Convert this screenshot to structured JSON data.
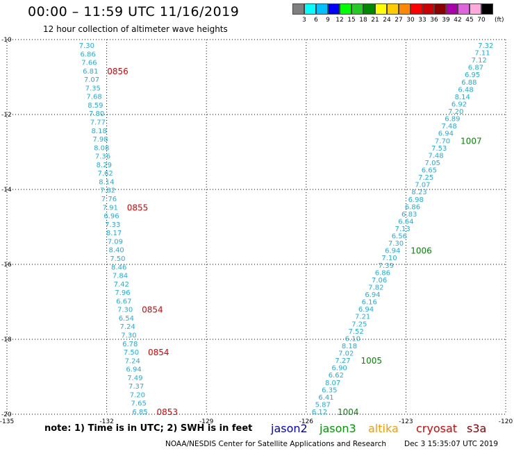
{
  "header": {
    "title": "00:00 – 11:59 UTC 11/16/2019",
    "subtitle": "12 hour collection of altimeter wave heights"
  },
  "colorbar": {
    "unit_label": "(ft)",
    "labels": [
      "3",
      "6",
      "9",
      "12",
      "15",
      "18",
      "21",
      "24",
      "27",
      "30",
      "33",
      "36",
      "39",
      "42",
      "45",
      "70"
    ],
    "colors": [
      "#7f7f7f",
      "#00ffff",
      "#00c0ff",
      "#0000ff",
      "#00ff00",
      "#22cc22",
      "#008800",
      "#ffff00",
      "#ffcc00",
      "#ff8800",
      "#ff0000",
      "#cc0000",
      "#880000",
      "#aa00aa",
      "#dd66dd",
      "#ffaadd",
      "#000000"
    ]
  },
  "map": {
    "lon_range": [
      -135,
      -120
    ],
    "lat_range": [
      -20,
      -10
    ],
    "x_ticks": [
      "-135",
      "-132",
      "-129",
      "-126",
      "-123",
      "-120"
    ],
    "y_ticks": [
      "-10",
      "-12",
      "-14",
      "-16",
      "-18",
      "-20"
    ],
    "grid_color": "#000000",
    "value_color": "#1ab0e0",
    "track_west": {
      "lon_start": -132.6,
      "lon_end": -131.0,
      "values": [
        "7.30",
        "6.86",
        "7.66",
        "6.81",
        "7.07",
        "7.35",
        "7.68",
        "8.59",
        "7.80",
        "7.77",
        "8.18",
        "7.98",
        "8.08",
        "7.36",
        "8.29",
        "7.62",
        "8.14",
        "7.82",
        "7.76",
        "7.91",
        "6.96",
        "7.33",
        "8.17",
        "7.09",
        "8.40",
        "7.50",
        "8.46",
        "7.84",
        "7.42",
        "7.96",
        "6.67",
        "7.30",
        "6.54",
        "7.24",
        "7.30",
        "6.78",
        "7.50",
        "7.24",
        "6.94",
        "7.49",
        "7.37",
        "7.20",
        "7.65",
        "6.85"
      ],
      "times": [
        {
          "label": "0856",
          "index": 3
        },
        {
          "label": "0855",
          "index": 19
        },
        {
          "label": "0854",
          "index": 31
        },
        {
          "label": "0854",
          "index": 36
        },
        {
          "label": "0853",
          "index": 43
        }
      ],
      "time_color": "#dd0000"
    },
    "track_east": {
      "lon_start": -120.6,
      "lon_end": -125.6,
      "values": [
        "7.32",
        "7.11",
        "7.12",
        "6.87",
        "6.95",
        "6.88",
        "6.48",
        "8.14",
        "6.92",
        "7.20",
        "6.89",
        "7.48",
        "6.94",
        "7.70",
        "7.53",
        "7.48",
        "7.05",
        "6.65",
        "7.25",
        "7.07",
        "8.23",
        "6.98",
        "6.86",
        "6.83",
        "6.64",
        "7.13",
        "6.56",
        "7.30",
        "6.94",
        "7.10",
        "7.39",
        "6.86",
        "7.06",
        "7.82",
        "6.94",
        "6.16",
        "6.94",
        "7.21",
        "7.25",
        "7.52",
        "6.10",
        "8.18",
        "7.02",
        "7.27",
        "6.90",
        "6.62",
        "8.07",
        "6.35",
        "6.41",
        "5.87",
        "6.12"
      ],
      "times": [
        {
          "label": "1007",
          "index": 13
        },
        {
          "label": "1006",
          "index": 28
        },
        {
          "label": "1005",
          "index": 43
        },
        {
          "label": "1004",
          "index": 50
        }
      ],
      "time_color": "#008800"
    }
  },
  "footer": {
    "note": "note:  1) Time is in UTC;  2) SWH is in feet",
    "legend": [
      {
        "name": "jason2",
        "color": "#0000cc"
      },
      {
        "name": "jason3",
        "color": "#009900"
      },
      {
        "name": "altika",
        "color": "#ff9900"
      },
      {
        "name": "cryosat",
        "color": "#dd0000"
      },
      {
        "name": "s3a",
        "color": "#880000"
      }
    ],
    "credit": "NOAA/NESDIS Center for Satellite Applications and Research",
    "timestamp": "Dec  3 15:35:07 UTC 2019"
  }
}
